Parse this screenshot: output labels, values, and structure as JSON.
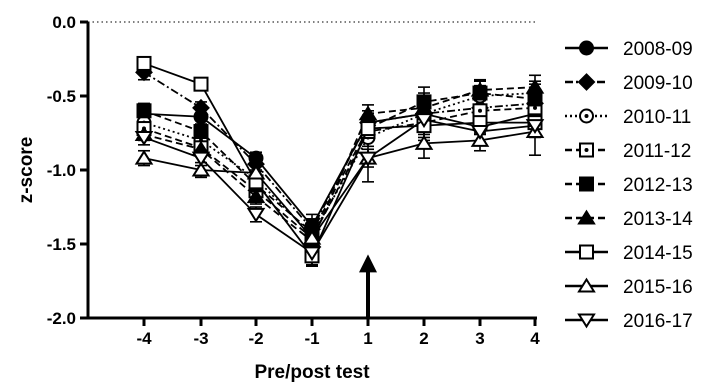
{
  "chart_data": {
    "type": "line",
    "title": "",
    "xlabel": "Pre/post test",
    "ylabel": "z-score",
    "x": [
      -4,
      -3,
      -2,
      -1,
      1,
      2,
      3,
      4
    ],
    "x_tick_labels": [
      "-4",
      "-3",
      "-2",
      "-1",
      "1",
      "2",
      "3",
      "4"
    ],
    "ylim": [
      -2.0,
      0.0
    ],
    "y_ticks": [
      0.0,
      -0.5,
      -1.0,
      -1.5,
      -2.0
    ],
    "y_tick_labels": [
      "0.0",
      "-0.5",
      "-1.0",
      "-1.5",
      "-2.0"
    ],
    "reference_line": {
      "y": 0.0,
      "style": "dotted"
    },
    "annotation": {
      "type": "arrow",
      "x": 1,
      "y_from": -2.0,
      "y_to": -1.57
    },
    "legend_position": "right",
    "series": [
      {
        "name": "2008-09",
        "marker": "circle-filled",
        "dash": "solid",
        "values": [
          -0.62,
          -0.64,
          -0.92,
          -1.38,
          -0.68,
          -0.62,
          -0.71,
          -0.62
        ],
        "errors": [
          0.04,
          0.05,
          0.04,
          0.08,
          0.08,
          0.1,
          0.05,
          0.1
        ]
      },
      {
        "name": "2009-10",
        "marker": "diamond-filled",
        "dash": "dashdot",
        "values": [
          -0.34,
          -0.58,
          -0.96,
          -1.4,
          -0.68,
          -0.62,
          -0.58,
          -0.55
        ],
        "errors": [
          0.05,
          0.04,
          0.04,
          0.07,
          0.05,
          0.1,
          0.06,
          0.07
        ]
      },
      {
        "name": "2010-11",
        "marker": "circle-open-dot",
        "dash": "dotted",
        "values": [
          -0.68,
          -0.8,
          -1.06,
          -1.44,
          -0.78,
          -0.62,
          -0.5,
          -0.48
        ],
        "errors": [
          0.04,
          0.05,
          0.05,
          0.08,
          0.06,
          0.12,
          0.07,
          0.08
        ]
      },
      {
        "name": "2011-12",
        "marker": "square-open-dot",
        "dash": "dashed",
        "values": [
          -0.72,
          -0.85,
          -1.14,
          -1.46,
          -0.74,
          -0.68,
          -0.6,
          -0.58
        ],
        "errors": [
          0.04,
          0.05,
          0.05,
          0.07,
          0.05,
          0.1,
          0.07,
          0.1
        ]
      },
      {
        "name": "2012-13",
        "marker": "square-filled",
        "dash": "dashed",
        "values": [
          -0.6,
          -0.74,
          -1.1,
          -1.42,
          -0.72,
          -0.54,
          -0.48,
          -0.52
        ],
        "errors": [
          0.05,
          0.05,
          0.05,
          0.08,
          0.07,
          0.1,
          0.08,
          0.1
        ]
      },
      {
        "name": "2013-14",
        "marker": "triangle-filled",
        "dash": "dashed",
        "values": [
          -0.76,
          -0.86,
          -1.18,
          -1.48,
          -0.62,
          -0.58,
          -0.46,
          -0.44
        ],
        "errors": [
          0.04,
          0.05,
          0.05,
          0.07,
          0.06,
          0.1,
          0.07,
          0.08
        ]
      },
      {
        "name": "2014-15",
        "marker": "square-open",
        "dash": "solid",
        "values": [
          -0.28,
          -0.42,
          -1.08,
          -1.58,
          -0.72,
          -0.7,
          -0.68,
          -0.68
        ],
        "errors": [
          0.04,
          0.04,
          0.05,
          0.07,
          0.06,
          0.1,
          0.07,
          0.08
        ]
      },
      {
        "name": "2015-16",
        "marker": "triangle-open",
        "dash": "solid",
        "values": [
          -0.92,
          -1.0,
          -1.02,
          -1.46,
          -0.92,
          -0.82,
          -0.8,
          -0.74
        ],
        "errors": [
          0.05,
          0.05,
          0.05,
          0.08,
          0.16,
          0.1,
          0.07,
          0.16
        ]
      },
      {
        "name": "2016-17",
        "marker": "triangle-down-open",
        "dash": "solid",
        "values": [
          -0.78,
          -0.92,
          -1.3,
          -1.56,
          -0.92,
          -0.66,
          -0.74,
          -0.7
        ],
        "errors": [
          0.05,
          0.05,
          0.05,
          0.08,
          0.06,
          0.1,
          0.07,
          0.08
        ]
      }
    ]
  }
}
